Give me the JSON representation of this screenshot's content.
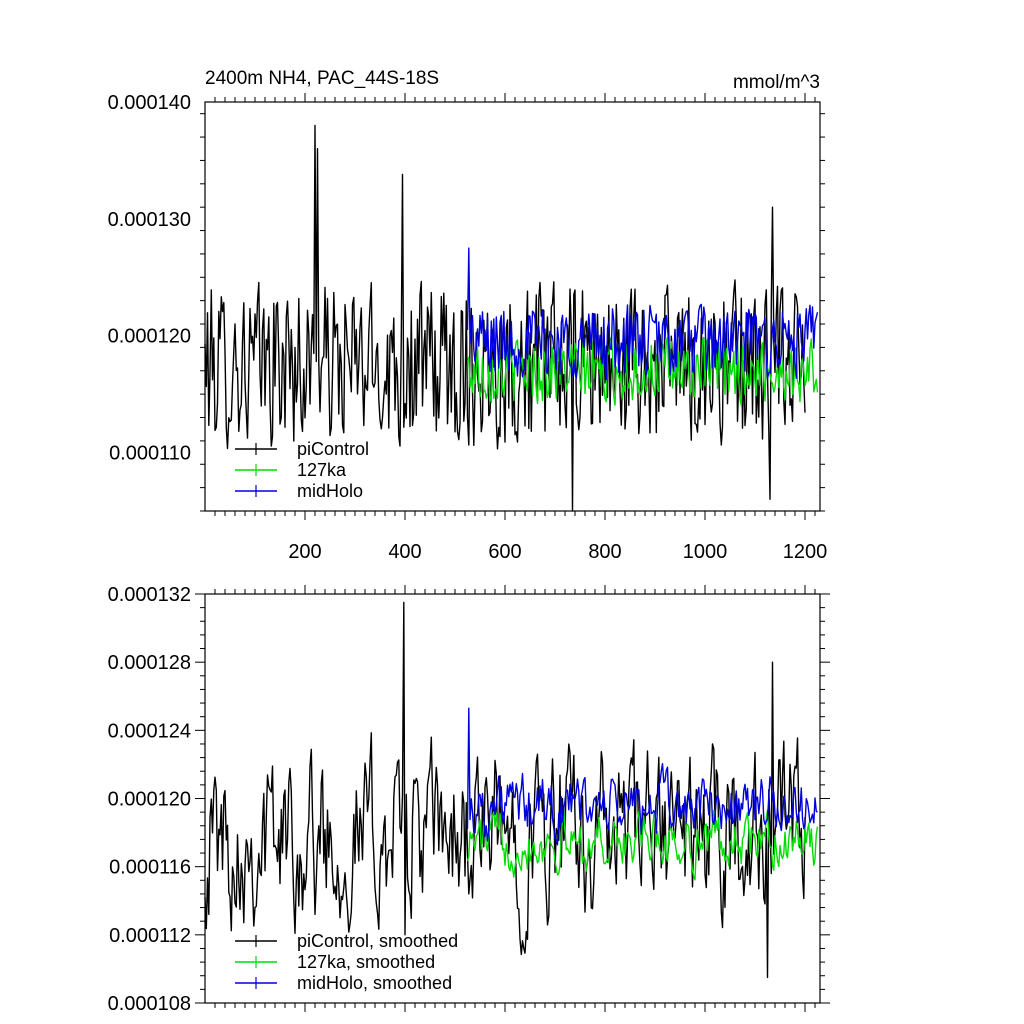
{
  "chart_data": [
    {
      "type": "line",
      "title": "2400m NH4, PAC_44S-18S",
      "units": "mmol/m^3",
      "xlim": [
        0,
        1230
      ],
      "ylim": [
        0.000105,
        0.00014
      ],
      "yticks": [
        0.00011,
        0.00012,
        0.00013,
        0.00014
      ],
      "ytick_labels": [
        "0.000110",
        "0.000120",
        "0.000130",
        "0.000140"
      ],
      "xticks": [
        200,
        400,
        600,
        800,
        1000,
        1200
      ],
      "xtick_labels": [
        "200",
        "400",
        "600",
        "800",
        "1000",
        "1200"
      ],
      "legend_position": "bottom-left",
      "series": [
        {
          "name": "piControl",
          "color": "#000000",
          "x_start": 0,
          "x_end": 1200,
          "mean": 0.0001175,
          "amplitude": 5.5e-06,
          "spikes": [
            [
              220,
              0.000138
            ],
            [
              226,
              0.000136
            ],
            [
              395,
              0.0001338
            ],
            [
              735,
              0.000105
            ],
            [
              1130,
              0.000106
            ],
            [
              1135,
              0.000131
            ]
          ]
        },
        {
          "name": "127ka",
          "color": "#00dd00",
          "x_start": 525,
          "x_end": 1225,
          "mean": 0.000117,
          "amplitude": 2.2e-06,
          "spikes": []
        },
        {
          "name": "midHolo",
          "color": "#0000dd",
          "x_start": 525,
          "x_end": 1225,
          "mean": 0.0001195,
          "amplitude": 2.5e-06,
          "spikes": [
            [
              527,
              0.0001275
            ]
          ]
        }
      ]
    },
    {
      "type": "line",
      "title": "",
      "units": "",
      "xlim": [
        0,
        1230
      ],
      "ylim": [
        0.000108,
        0.000132
      ],
      "yticks": [
        0.000108,
        0.000112,
        0.000116,
        0.00012,
        0.000124,
        0.000128,
        0.000132
      ],
      "ytick_labels": [
        "0.000108",
        "0.000112",
        "0.000116",
        "0.000120",
        "0.000124",
        "0.000128",
        "0.000132"
      ],
      "xticks": [
        200,
        400,
        600,
        800,
        1000,
        1200
      ],
      "xtick_labels": [],
      "legend_position": "bottom-left",
      "series": [
        {
          "name": "piControl, smoothed",
          "color": "#000000",
          "x_start": 0,
          "x_end": 1200,
          "mean": 0.0001178,
          "amplitude": 4.2e-06,
          "spikes": [
            [
              397,
              0.0001315
            ],
            [
              400,
              0.000112
            ],
            [
              1135,
              0.000128
            ],
            [
              1125,
              0.0001095
            ]
          ]
        },
        {
          "name": "127ka, smoothed",
          "color": "#00dd00",
          "x_start": 525,
          "x_end": 1225,
          "mean": 0.0001175,
          "amplitude": 1.4e-06,
          "spikes": []
        },
        {
          "name": "midHolo, smoothed",
          "color": "#0000dd",
          "x_start": 525,
          "x_end": 1225,
          "mean": 0.0001195,
          "amplitude": 1.6e-06,
          "spikes": [
            [
              527,
              0.0001253
            ]
          ]
        }
      ]
    }
  ]
}
